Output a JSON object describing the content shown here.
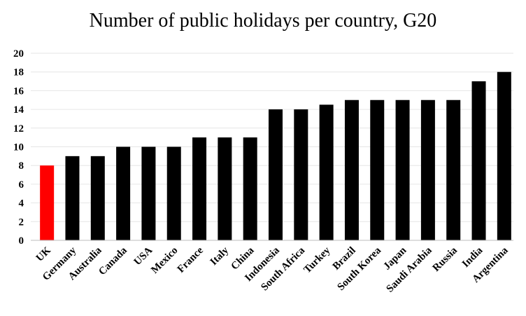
{
  "chart_data": {
    "type": "bar",
    "title": "Number of public holidays per country, G20",
    "categories": [
      "UK",
      "Germany",
      "Australia",
      "Canada",
      "USA",
      "Mexico",
      "France",
      "Italy",
      "China",
      "Indonesia",
      "South Africa",
      "Turkey",
      "Brazil",
      "South Korea",
      "Japan",
      "Saudi Arabia",
      "Russia",
      "India",
      "Argentina"
    ],
    "values": [
      8,
      9,
      9,
      10,
      10,
      10,
      11,
      11,
      11,
      14,
      14,
      14.5,
      15,
      15,
      15,
      15,
      15,
      17,
      18
    ],
    "highlight": {
      "category": "UK",
      "color": "#ff0000"
    },
    "bar_color": "#000000",
    "ylim": [
      0,
      20
    ],
    "yticks": [
      0,
      2,
      4,
      6,
      8,
      10,
      12,
      14,
      16,
      18,
      20
    ],
    "grid": true,
    "legend": "none"
  }
}
